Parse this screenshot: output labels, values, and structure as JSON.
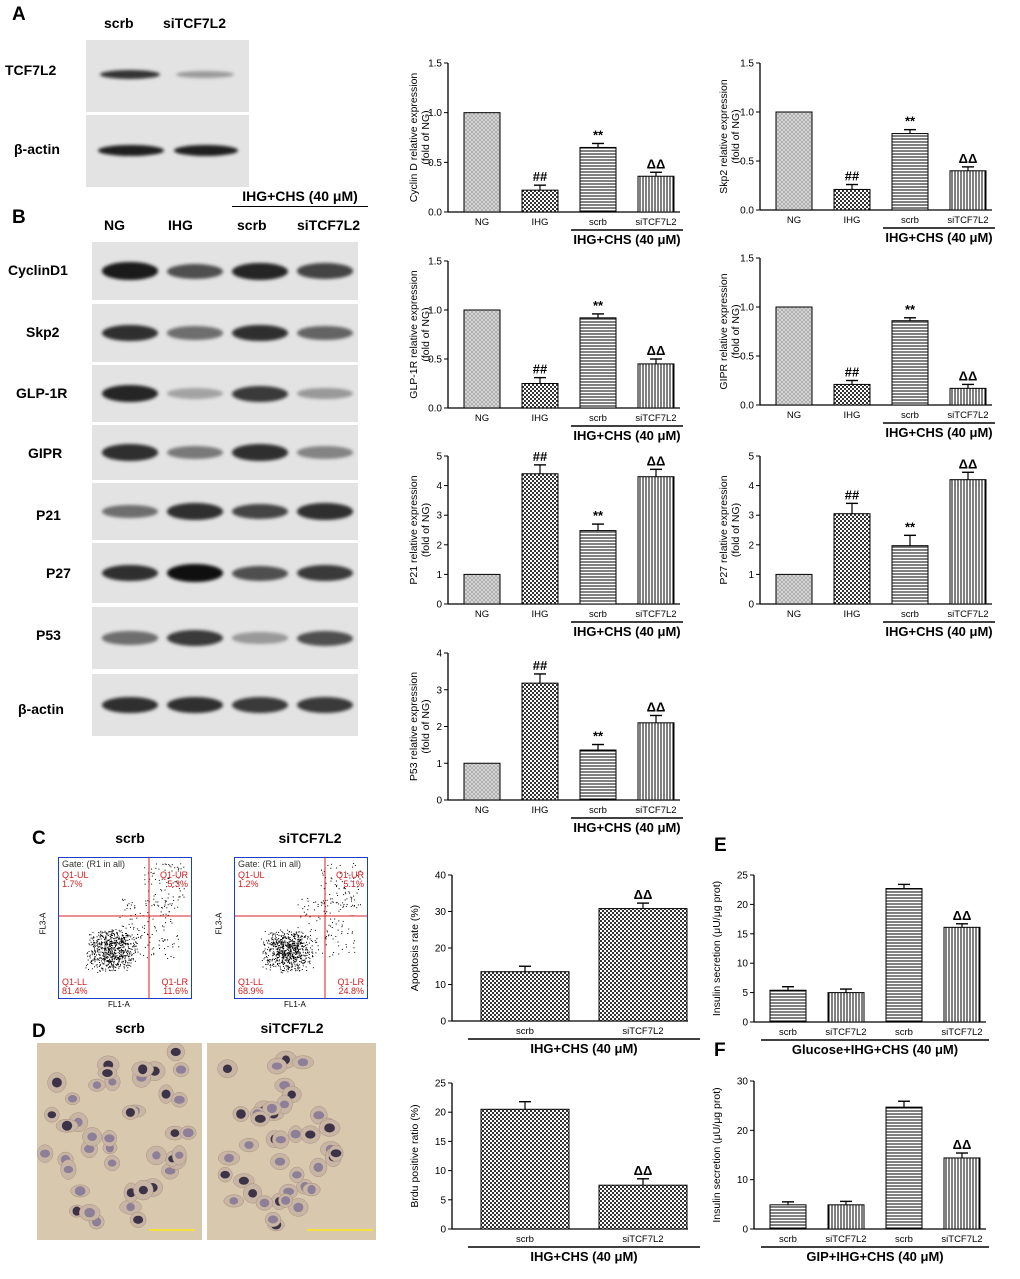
{
  "panel_a": {
    "letter": "A",
    "lanes": [
      "scrb",
      "siTCF7L2"
    ],
    "blots": [
      {
        "label": "TCF7L2",
        "intensity": [
          0.85,
          0.35
        ]
      },
      {
        "label": "β-actin",
        "intensity": [
          0.95,
          0.95
        ]
      }
    ]
  },
  "panel_b": {
    "letter": "B",
    "group_header": "IHG+CHS (40 μM)",
    "lanes": [
      "NG",
      "IHG",
      "scrb",
      "siTCF7L2"
    ],
    "blots": [
      {
        "label": "CyclinD1",
        "intensity": [
          0.95,
          0.7,
          0.9,
          0.75
        ]
      },
      {
        "label": "Skp2",
        "intensity": [
          0.85,
          0.55,
          0.85,
          0.6
        ]
      },
      {
        "label": "GLP-1R",
        "intensity": [
          0.9,
          0.3,
          0.8,
          0.35
        ]
      },
      {
        "label": "GIPR",
        "intensity": [
          0.85,
          0.5,
          0.85,
          0.45
        ]
      },
      {
        "label": "P21",
        "intensity": [
          0.55,
          0.85,
          0.75,
          0.85
        ]
      },
      {
        "label": "P27",
        "intensity": [
          0.85,
          1.0,
          0.7,
          0.8
        ]
      },
      {
        "label": "P53",
        "intensity": [
          0.55,
          0.8,
          0.35,
          0.7
        ]
      },
      {
        "label": "β-actin",
        "intensity": [
          0.85,
          0.85,
          0.8,
          0.8
        ]
      }
    ]
  },
  "panel_c": {
    "letter": "C",
    "plots": [
      {
        "title": "scrb",
        "gate": "Gate: (R1 in all)",
        "ul_name": "Q1-UL",
        "ul_val": "1.7%",
        "ur_name": "Q1-UR",
        "ur_val": "5.3%",
        "ll_name": "Q1-LL",
        "ll_val": "81.4%",
        "lr_name": "Q1-LR",
        "lr_val": "11.6%",
        "xaxis": "FL1-A",
        "yaxis": "FL3-A"
      },
      {
        "title": "siTCF7L2",
        "gate": "Gate: (R1 in all)",
        "ul_name": "Q1-UL",
        "ul_val": "1.2%",
        "ur_name": "Q1-UR",
        "ur_val": "5.1%",
        "ll_name": "Q1-LL",
        "ll_val": "68.9%",
        "lr_name": "Q1-LR",
        "lr_val": "24.8%",
        "xaxis": "FL1-A",
        "yaxis": "FL3-A"
      }
    ]
  },
  "panel_d": {
    "letter": "D",
    "images": [
      "scrb",
      "siTCF7L2"
    ]
  },
  "panel_e": {
    "letter": "E"
  },
  "panel_f": {
    "letter": "F"
  },
  "chart_data": [
    {
      "id": "cyclin",
      "type": "bar",
      "categories": [
        "NG",
        "IHG",
        "scrb",
        "siTCF7L2"
      ],
      "values": [
        1.0,
        0.22,
        0.65,
        0.36
      ],
      "errors": [
        0,
        0.05,
        0.04,
        0.04
      ],
      "annotations": [
        "",
        "##",
        "**",
        "ΔΔ"
      ],
      "patterns": [
        "crosshatch",
        "check",
        "hlines",
        "vlines"
      ],
      "ylabel": [
        "Cyclin D relative expression",
        "(fold of NG)"
      ],
      "ylim": [
        0,
        1.5
      ],
      "yticks": [
        "0.0",
        "0.5",
        "1.0",
        "1.5"
      ],
      "group_label": "IHG+CHS (40 μM)",
      "group_span": [
        2,
        3
      ]
    },
    {
      "id": "skp2",
      "type": "bar",
      "categories": [
        "NG",
        "IHG",
        "scrb",
        "siTCF7L2"
      ],
      "values": [
        1.0,
        0.21,
        0.78,
        0.4
      ],
      "errors": [
        0,
        0.05,
        0.04,
        0.04
      ],
      "annotations": [
        "",
        "##",
        "**",
        "ΔΔ"
      ],
      "patterns": [
        "crosshatch",
        "check",
        "hlines",
        "vlines"
      ],
      "ylabel": [
        "Skp2 relative expression",
        "(fold of NG)"
      ],
      "ylim": [
        0,
        1.5
      ],
      "yticks": [
        "0.0",
        "0.5",
        "1.0",
        "1.5"
      ],
      "group_label": "IHG+CHS (40 μM)",
      "group_span": [
        2,
        3
      ]
    },
    {
      "id": "glp1r",
      "type": "bar",
      "categories": [
        "NG",
        "IHG",
        "scrb",
        "siTCF7L2"
      ],
      "values": [
        1.0,
        0.25,
        0.92,
        0.45
      ],
      "errors": [
        0,
        0.06,
        0.04,
        0.05
      ],
      "annotations": [
        "",
        "##",
        "**",
        "ΔΔ"
      ],
      "patterns": [
        "crosshatch",
        "check",
        "hlines",
        "vlines"
      ],
      "ylabel": [
        "GLP-1R relative expression",
        "(fold of NG)"
      ],
      "ylim": [
        0,
        1.5
      ],
      "yticks": [
        "0.0",
        "0.5",
        "1.0",
        "1.5"
      ],
      "group_label": "IHG+CHS (40 μM)",
      "group_span": [
        2,
        3
      ]
    },
    {
      "id": "gipr",
      "type": "bar",
      "categories": [
        "NG",
        "IHG",
        "scrb",
        "siTCF7L2"
      ],
      "values": [
        1.0,
        0.21,
        0.86,
        0.17
      ],
      "errors": [
        0,
        0.04,
        0.03,
        0.04
      ],
      "annotations": [
        "",
        "##",
        "**",
        "ΔΔ"
      ],
      "patterns": [
        "crosshatch",
        "check",
        "hlines",
        "vlines"
      ],
      "ylabel": [
        "GIPR relative expression",
        "(fold of NG)"
      ],
      "ylim": [
        0,
        1.5
      ],
      "yticks": [
        "0.0",
        "0.5",
        "1.0",
        "1.5"
      ],
      "group_label": "IHG+CHS (40 μM)",
      "group_span": [
        2,
        3
      ]
    },
    {
      "id": "p21",
      "type": "bar",
      "categories": [
        "NG",
        "IHG",
        "scrb",
        "siTCF7L2"
      ],
      "values": [
        1.0,
        4.4,
        2.48,
        4.3
      ],
      "errors": [
        0,
        0.3,
        0.22,
        0.25
      ],
      "annotations": [
        "",
        "##",
        "**",
        "ΔΔ"
      ],
      "patterns": [
        "crosshatch",
        "check",
        "hlines",
        "vlines"
      ],
      "ylabel": [
        "P21 relative expression",
        "(fold of NG)"
      ],
      "ylim": [
        0,
        5
      ],
      "yticks": [
        "0",
        "1",
        "2",
        "3",
        "4",
        "5"
      ],
      "group_label": "IHG+CHS (40 μM)",
      "group_span": [
        2,
        3
      ]
    },
    {
      "id": "p27",
      "type": "bar",
      "categories": [
        "NG",
        "IHG",
        "scrb",
        "siTCF7L2"
      ],
      "values": [
        1.0,
        3.05,
        1.97,
        4.2
      ],
      "errors": [
        0,
        0.35,
        0.35,
        0.25
      ],
      "annotations": [
        "",
        "##",
        "**",
        "ΔΔ"
      ],
      "patterns": [
        "crosshatch",
        "check",
        "hlines",
        "vlines"
      ],
      "ylabel": [
        "P27 relative expression",
        "(fold of NG)"
      ],
      "ylim": [
        0,
        5
      ],
      "yticks": [
        "0",
        "1",
        "2",
        "3",
        "4",
        "5"
      ],
      "group_label": "IHG+CHS (40 μM)",
      "group_span": [
        2,
        3
      ]
    },
    {
      "id": "p53",
      "type": "bar",
      "categories": [
        "NG",
        "IHG",
        "scrb",
        "siTCF7L2"
      ],
      "values": [
        1.0,
        3.18,
        1.36,
        2.1
      ],
      "errors": [
        0,
        0.25,
        0.15,
        0.2
      ],
      "annotations": [
        "",
        "##",
        "**",
        "ΔΔ"
      ],
      "patterns": [
        "crosshatch",
        "check",
        "hlines",
        "vlines"
      ],
      "ylabel": [
        "P53 relative expression",
        "(fold of NG)"
      ],
      "ylim": [
        0,
        4
      ],
      "yticks": [
        "0",
        "1",
        "2",
        "3",
        "4"
      ],
      "group_label": "IHG+CHS (40 μM)",
      "group_span": [
        2,
        3
      ]
    },
    {
      "id": "apoptosis",
      "type": "bar",
      "categories": [
        "scrb",
        "siTCF7L2"
      ],
      "values": [
        13.5,
        30.8
      ],
      "errors": [
        1.5,
        1.5
      ],
      "annotations": [
        "",
        "ΔΔ"
      ],
      "patterns": [
        "check",
        "check"
      ],
      "ylabel": [
        "Apoptosis rate (%)"
      ],
      "ylim": [
        0,
        40
      ],
      "yticks": [
        "0",
        "10",
        "20",
        "30",
        "40"
      ],
      "group_label": "IHG+CHS (40 μM)",
      "group_span": [
        0,
        1
      ]
    },
    {
      "id": "brdu",
      "type": "bar",
      "categories": [
        "scrb",
        "siTCF7L2"
      ],
      "values": [
        20.5,
        7.5
      ],
      "errors": [
        1.3,
        1.1
      ],
      "annotations": [
        "",
        "ΔΔ"
      ],
      "patterns": [
        "check",
        "check"
      ],
      "ylabel": [
        "Brdu positive ratio (%)"
      ],
      "ylim": [
        0,
        25
      ],
      "yticks": [
        "0",
        "5",
        "10",
        "15",
        "20",
        "25"
      ],
      "group_label": "IHG+CHS (40 μM)",
      "group_span": [
        0,
        1
      ]
    },
    {
      "id": "insulin_glucose",
      "type": "bar",
      "categories": [
        "scrb",
        "siTCF7L2",
        "scrb",
        "siTCF7L2"
      ],
      "values": [
        5.4,
        5.0,
        22.7,
        16.1
      ],
      "errors": [
        0.6,
        0.6,
        0.7,
        0.6
      ],
      "annotations": [
        "",
        "",
        "",
        "ΔΔ"
      ],
      "patterns": [
        "hlines",
        "vlines",
        "hlines",
        "vlines"
      ],
      "ylabel": [
        "Insulin secretion (μU/μg prot)"
      ],
      "ylim": [
        0,
        25
      ],
      "yticks": [
        "0",
        "5",
        "10",
        "15",
        "20",
        "25"
      ],
      "group_label": "Glucose+IHG+CHS (40 μM)",
      "group_span": [
        0,
        3
      ]
    },
    {
      "id": "insulin_gip",
      "type": "bar",
      "categories": [
        "scrb",
        "siTCF7L2",
        "scrb",
        "siTCF7L2"
      ],
      "values": [
        4.9,
        4.9,
        24.7,
        14.4
      ],
      "errors": [
        0.6,
        0.7,
        1.2,
        1.0
      ],
      "annotations": [
        "",
        "",
        "",
        "ΔΔ"
      ],
      "patterns": [
        "hlines",
        "vlines",
        "hlines",
        "vlines"
      ],
      "ylabel": [
        "Insulin secretion (μU/μg prot)"
      ],
      "ylim": [
        0,
        30
      ],
      "yticks": [
        "0",
        "10",
        "20",
        "30"
      ],
      "group_label": "GIP+IHG+CHS (40 μM)",
      "group_span": [
        0,
        3
      ]
    }
  ]
}
